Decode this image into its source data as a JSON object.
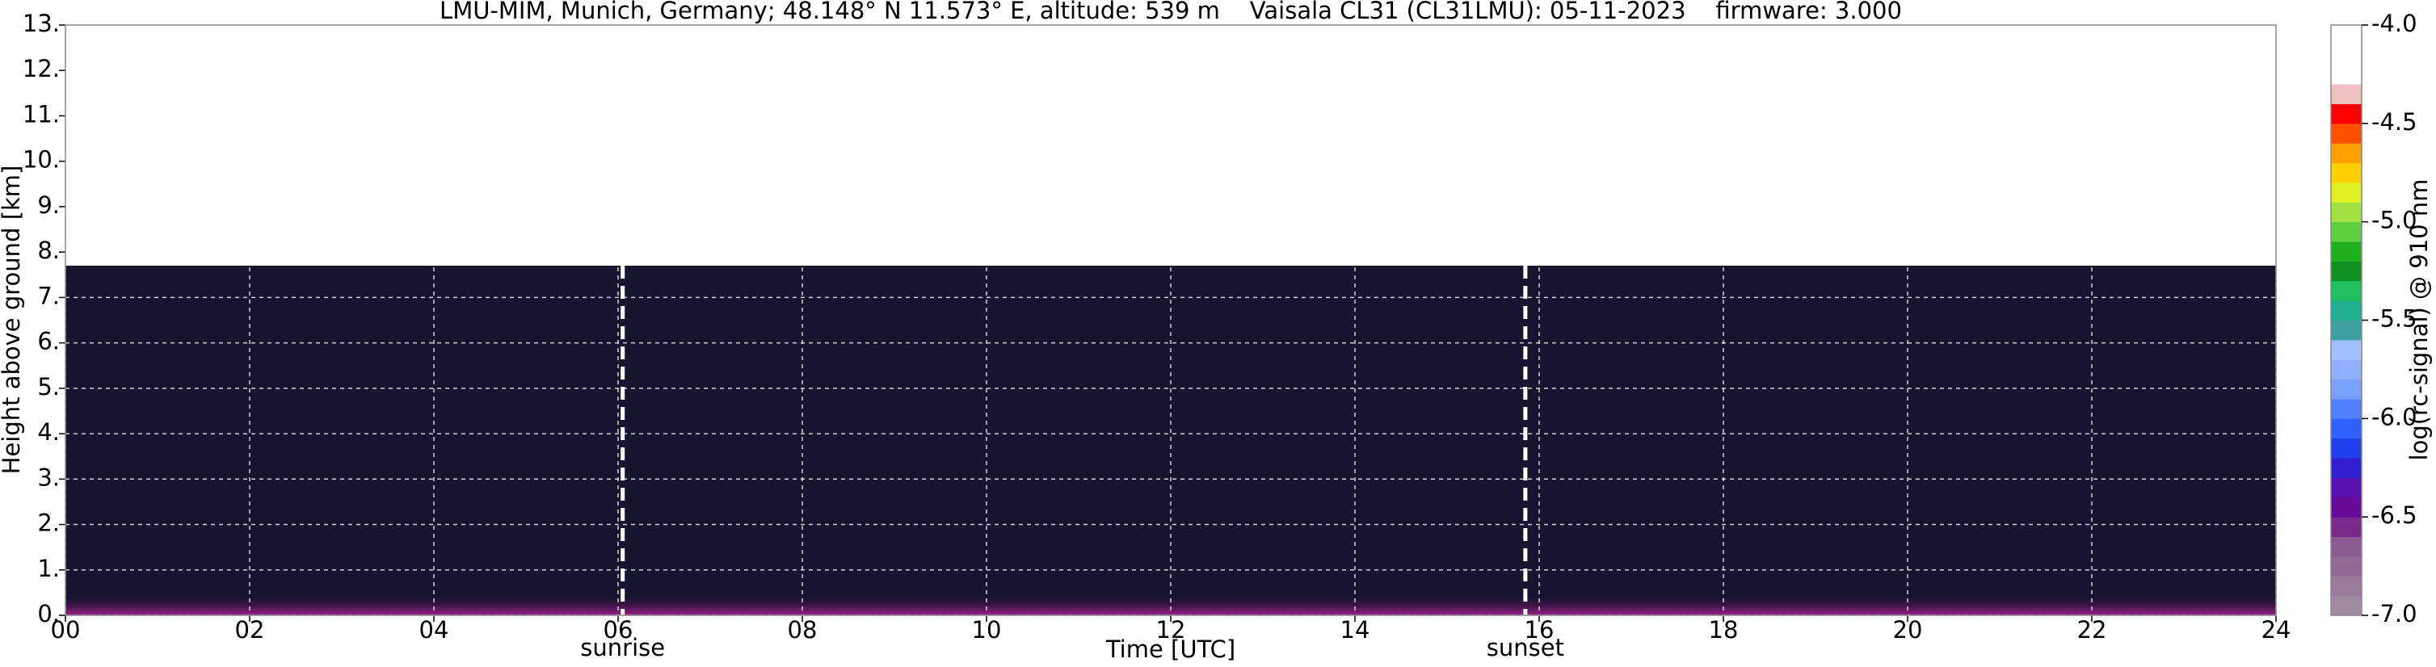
{
  "chart_data": {
    "type": "heatmap",
    "title": "LMU-MIM, Munich, Germany; 48.148° N 11.573° E, altitude: 539 m    Vaisala CL31 (CL31LMU): 05-11-2023    firmware: 3.000",
    "xlabel": "Time [UTC]",
    "ylabel": "Height above ground [km]",
    "xlim": [
      0,
      24
    ],
    "xticks": [
      {
        "value": 0,
        "label": "00"
      },
      {
        "value": 2,
        "label": "02"
      },
      {
        "value": 4,
        "label": "04"
      },
      {
        "value": 6,
        "label": "06"
      },
      {
        "value": 8,
        "label": "08"
      },
      10,
      12,
      14,
      16,
      18,
      20,
      22,
      24
    ],
    "ylim": [
      0,
      13
    ],
    "yticks": [
      {
        "value": 0,
        "label": "0."
      },
      {
        "value": 1,
        "label": "1."
      },
      {
        "value": 2,
        "label": "2."
      },
      {
        "value": 3,
        "label": "3."
      },
      {
        "value": 4,
        "label": "4."
      },
      {
        "value": 5,
        "label": "5."
      },
      {
        "value": 6,
        "label": "6."
      },
      {
        "value": 7,
        "label": "7."
      },
      {
        "value": 8,
        "label": "8."
      },
      {
        "value": 9,
        "label": "9."
      },
      {
        "value": 10,
        "label": "10."
      },
      {
        "value": 11,
        "label": "11."
      },
      {
        "value": 12,
        "label": "12."
      },
      {
        "value": 13,
        "label": "13."
      }
    ],
    "grid": true,
    "signal_top": 7.7,
    "annotations": [
      {
        "x": 6.05,
        "label": "sunrise"
      },
      {
        "x": 15.85,
        "label": "sunset"
      }
    ],
    "colorbar": {
      "label": "log(rc-signal) @ 910 nm",
      "ylim": [
        -7,
        -4
      ],
      "yticks": [
        {
          "value": -7,
          "label": "-7.0"
        },
        {
          "value": -6.5,
          "label": "-6.5"
        },
        {
          "value": -6,
          "label": "-6.0"
        },
        {
          "value": -5.5,
          "label": "-5.5"
        },
        {
          "value": -5,
          "label": "-5.0"
        },
        {
          "value": -4.5,
          "label": "-4.5"
        },
        {
          "value": -4,
          "label": "-4.0"
        }
      ],
      "colors": [
        "#a08aa0",
        "#9a7a9a",
        "#946a94",
        "#8a5a90",
        "#7a2a8a",
        "#6a0a9a",
        "#5a10b0",
        "#3020d0",
        "#2040f0",
        "#3060ff",
        "#5080ff",
        "#7aa0ff",
        "#90b0ff",
        "#a0c0ff",
        "#40a0a0",
        "#20b090",
        "#20c060",
        "#109020",
        "#20b020",
        "#60d040",
        "#a0e040",
        "#e0f020",
        "#ffd000",
        "#ffa000",
        "#ff5000",
        "#ff0000",
        "#f0c0c0",
        "#ffffff",
        "#ffffff",
        "#ffffff"
      ]
    }
  }
}
